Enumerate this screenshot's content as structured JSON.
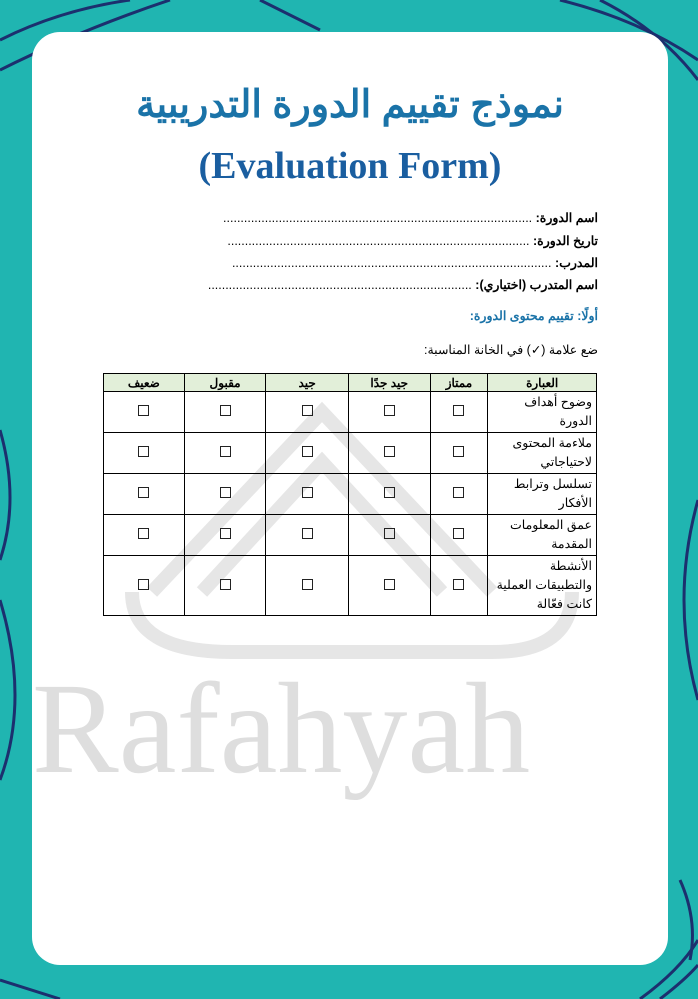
{
  "title_ar": "نموذج تقييم الدورة التدريبية",
  "title_en": "(Evaluation Form)",
  "fields": [
    {
      "label": "اسم الدورة:",
      "dots": "........................................................................................."
    },
    {
      "label": "تاريخ الدورة:",
      "dots": "......................................................................................."
    },
    {
      "label": "المدرب:",
      "dots": "............................................................................................"
    },
    {
      "label": "اسم المتدرب (اختياري):",
      "dots": "............................................................................"
    }
  ],
  "section_title": "أولًا: تقييم محتوى الدورة:",
  "instruction": "ضع علامة (✓) في الخانة المناسبة:",
  "table": {
    "headers": [
      "العبارة",
      "ممتاز",
      "جيد جدًا",
      "جيد",
      "مقبول",
      "ضعيف"
    ],
    "rows": [
      "وضوح أهداف الدورة",
      "ملاءمة المحتوى لاحتياجاتي",
      "تسلسل وترابط الأفكار",
      "عمق المعلومات المقدمة",
      "الأنشطة والتطبيقات العملية كانت فعّالة"
    ]
  },
  "watermark": "Rafahyah",
  "colors": {
    "background": "#20b5b1",
    "title": "#1a73a8",
    "header_fill": "#e2efd9",
    "lines": "#1c2f6e"
  }
}
